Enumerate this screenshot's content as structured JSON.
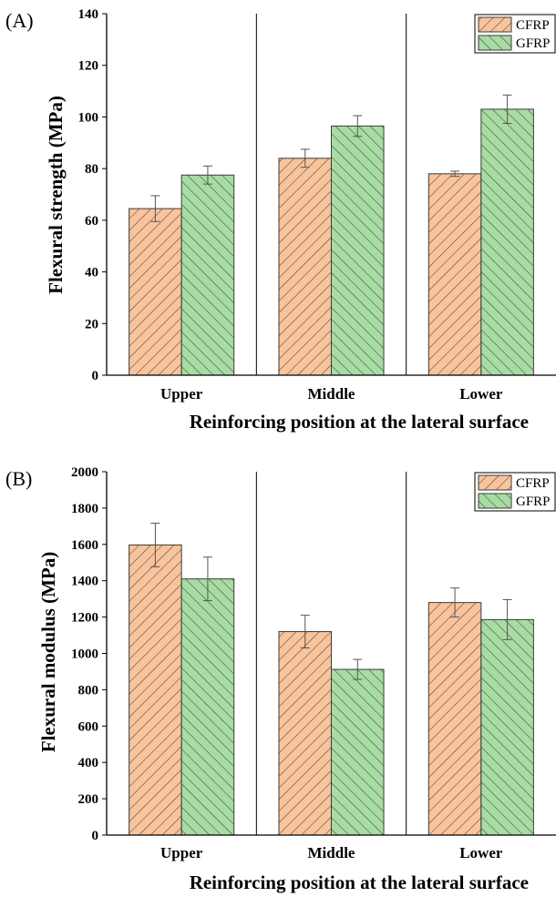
{
  "chart_data": [
    {
      "panel": "(A)",
      "type": "bar",
      "xlabel": "Reinforcing position at the lateral surface",
      "ylabel": "Flexural strength (MPa)",
      "ylim": [
        0,
        140
      ],
      "yticks": [
        0,
        20,
        40,
        60,
        80,
        100,
        120,
        140
      ],
      "categories": [
        "Upper",
        "Middle",
        "Lower"
      ],
      "series": [
        {
          "name": "CFRP",
          "color": "#f9c39b",
          "pattern": "forward-diagonal-hatch",
          "values": [
            64.5,
            84,
            78
          ],
          "errors": [
            5,
            3.5,
            1
          ]
        },
        {
          "name": "GFRP",
          "color": "#a7dca2",
          "pattern": "backward-diagonal-hatch",
          "values": [
            77.5,
            96.5,
            103
          ],
          "errors": [
            3.5,
            4,
            5.5
          ]
        }
      ],
      "legend": "top-right",
      "grid": false,
      "separators": "vertical lines between categories"
    },
    {
      "panel": "(B)",
      "type": "bar",
      "xlabel": "Reinforcing position at the lateral surface",
      "ylabel": "Flexural modulus (MPa)",
      "ylim": [
        0,
        2000
      ],
      "yticks": [
        0,
        200,
        400,
        600,
        800,
        1000,
        1200,
        1400,
        1600,
        1800,
        2000
      ],
      "categories": [
        "Upper",
        "Middle",
        "Lower"
      ],
      "series": [
        {
          "name": "CFRP",
          "color": "#f9c39b",
          "pattern": "forward-diagonal-hatch",
          "values": [
            1597,
            1120,
            1280
          ],
          "errors": [
            120,
            90,
            80
          ]
        },
        {
          "name": "GFRP",
          "color": "#a7dca2",
          "pattern": "backward-diagonal-hatch",
          "values": [
            1410,
            912,
            1186
          ],
          "errors": [
            120,
            55,
            110
          ]
        }
      ],
      "legend": "top-right",
      "grid": false,
      "separators": "vertical lines between categories"
    }
  ]
}
